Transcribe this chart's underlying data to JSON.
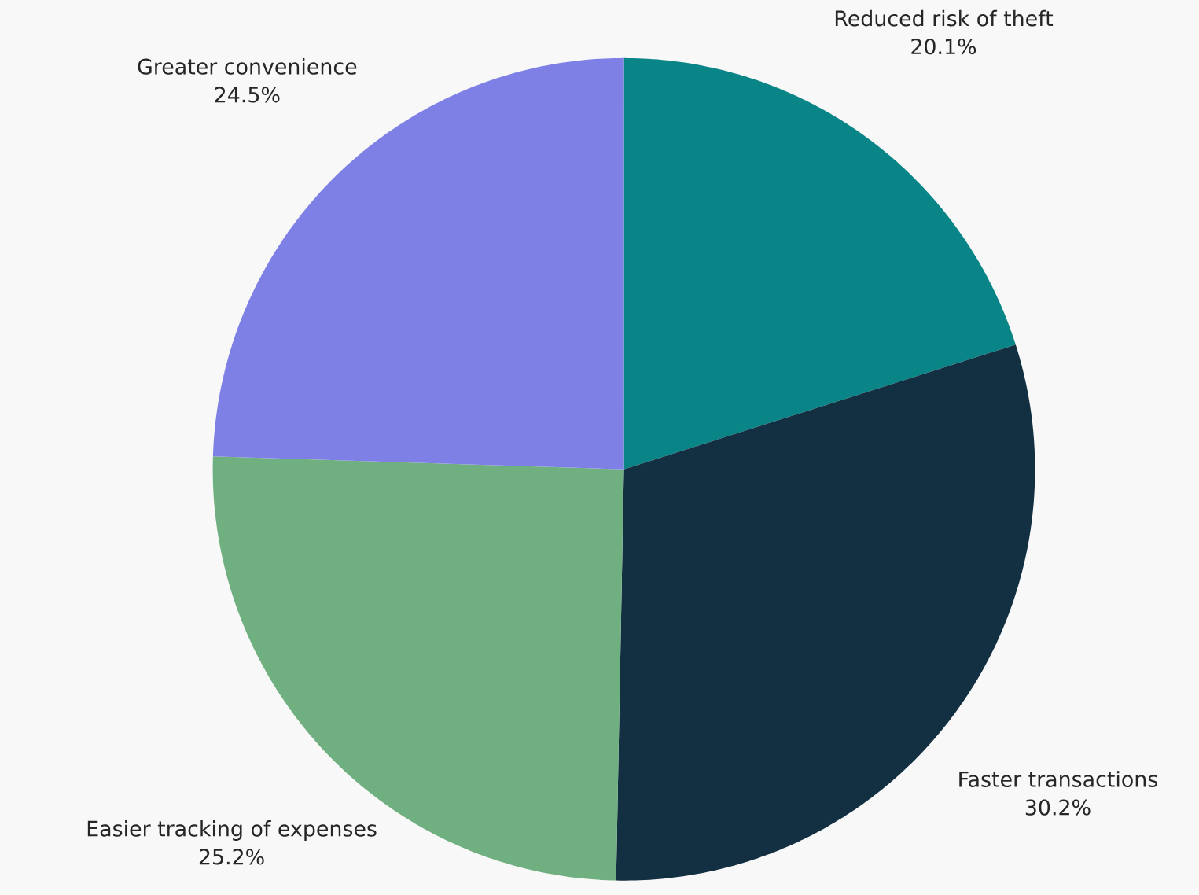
{
  "chart_data": {
    "type": "pie",
    "categories": [
      "Reduced risk of theft",
      "Faster transactions",
      "Easier tracking of expenses",
      "Greater convenience"
    ],
    "values": [
      20.1,
      30.2,
      25.2,
      24.5
    ],
    "value_labels": [
      "20.1%",
      "30.2%",
      "25.2%",
      "24.5%"
    ],
    "colors": [
      "#0a8587",
      "#132f42",
      "#70b080",
      "#7f80e6"
    ]
  }
}
